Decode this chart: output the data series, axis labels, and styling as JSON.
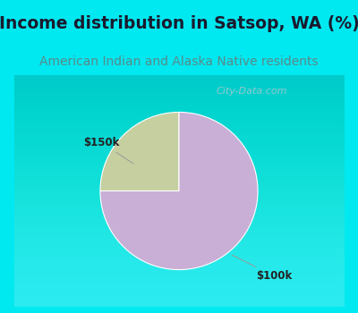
{
  "title": "Income distribution in Satsop, WA (%)",
  "subtitle": "American Indian and Alaska Native residents",
  "slices": [
    {
      "label": "$150k",
      "value": 25,
      "color": "#c5cfa0"
    },
    {
      "label": "$100k",
      "value": 75,
      "color": "#c9aed6"
    }
  ],
  "title_fontsize": 13.5,
  "subtitle_fontsize": 10,
  "title_color": "#1a1a2e",
  "subtitle_color": "#5a8a8a",
  "fig_bg": "#00e8f0",
  "chart_bg": "#f0f8f0",
  "watermark": "City-Data.com",
  "start_angle": 90
}
